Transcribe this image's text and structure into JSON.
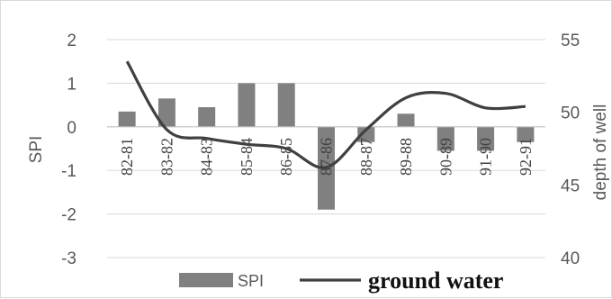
{
  "chart_data": {
    "type": "bar",
    "categories": [
      "82-81",
      "83-82",
      "84-83",
      "85-84",
      "86-85",
      "87-86",
      "88-87",
      "89-88",
      "90-89",
      "91-90",
      "92-91"
    ],
    "series": [
      {
        "name": "SPI",
        "type": "bar",
        "axis": "left",
        "color": "#808080",
        "values": [
          0.35,
          0.65,
          0.45,
          1.0,
          1.0,
          -1.9,
          -0.35,
          0.3,
          -0.55,
          -0.55,
          -0.35
        ]
      },
      {
        "name": "ground water",
        "type": "line",
        "axis": "right",
        "color": "#404040",
        "values": [
          53.5,
          48.8,
          48.2,
          47.8,
          47.5,
          46.2,
          48.8,
          51.0,
          51.3,
          50.3,
          50.4
        ]
      }
    ],
    "ylabel": "SPI",
    "y2label": "depth of well",
    "ylim": [
      -3,
      2
    ],
    "y2lim": [
      40,
      55
    ],
    "yticks": [
      2,
      1,
      0,
      -1,
      -2,
      -3
    ],
    "y2ticks": [
      55,
      50,
      45,
      40
    ],
    "grid": true,
    "legend": "bottom"
  }
}
